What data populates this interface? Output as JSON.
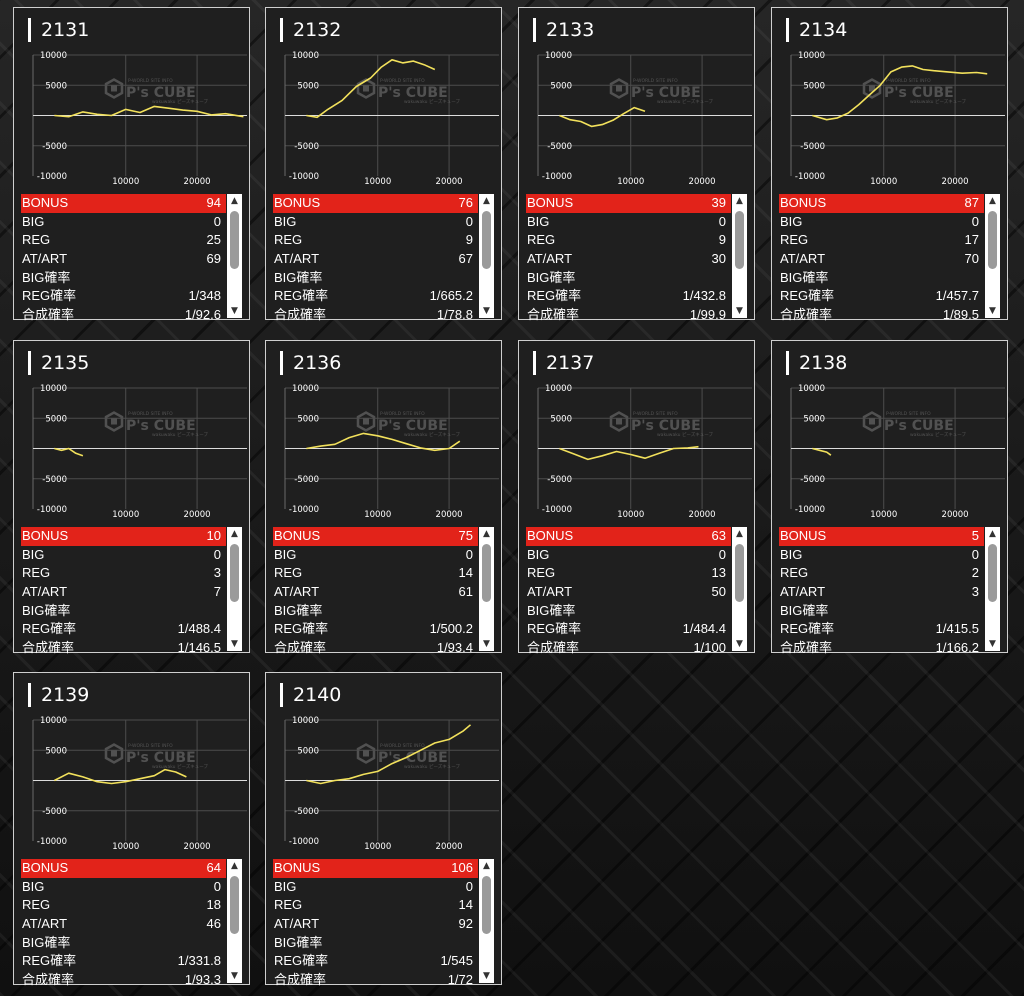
{
  "labels": {
    "bonus": "BONUS",
    "big": "BIG",
    "reg": "REG",
    "at_art": "AT/ART",
    "big_rate": "BIG確率",
    "reg_rate": "REG確率",
    "combined_rate": "合成確率"
  },
  "watermark": {
    "logo": "P's CUBE",
    "tagline_top": "P-WORLD SITE INFO",
    "tagline_bottom": "wakuwaku ピーズキューブ"
  },
  "graph_axes": {
    "y_ticks": [
      "10000",
      "5000",
      "-5000",
      "-10000"
    ],
    "x_ticks": [
      "10000",
      "20000"
    ]
  },
  "scrollbar": {
    "up_arrow": "▲",
    "down_arrow": "▼"
  },
  "machines": [
    {
      "number": "2131",
      "bonus": "94",
      "big": "0",
      "reg": "25",
      "at_art": "69",
      "big_rate": "",
      "reg_rate": "1/348",
      "combined_rate": "1/92.6",
      "chart_data": {
        "type": "line",
        "xlim": [
          -3000,
          27000
        ],
        "ylim": [
          -10000,
          10000
        ],
        "x": [
          0,
          2000,
          4000,
          6000,
          8000,
          10000,
          12000,
          14000,
          16000,
          18000,
          20000,
          22000,
          24000,
          26500
        ],
        "y": [
          0,
          -200,
          600,
          200,
          0,
          1000,
          500,
          1500,
          1200,
          900,
          700,
          100,
          300,
          -200
        ]
      }
    },
    {
      "number": "2132",
      "bonus": "76",
      "big": "0",
      "reg": "9",
      "at_art": "67",
      "big_rate": "",
      "reg_rate": "1/665.2",
      "combined_rate": "1/78.8",
      "chart_data": {
        "type": "line",
        "xlim": [
          -3000,
          27000
        ],
        "ylim": [
          -10000,
          10000
        ],
        "x": [
          0,
          1500,
          3000,
          5000,
          7000,
          9000,
          10500,
          12000,
          13500,
          15000,
          16500,
          18000
        ],
        "y": [
          0,
          -300,
          1000,
          2500,
          4800,
          6200,
          8000,
          9200,
          8700,
          9000,
          8400,
          7600
        ]
      }
    },
    {
      "number": "2133",
      "bonus": "39",
      "big": "0",
      "reg": "9",
      "at_art": "30",
      "big_rate": "",
      "reg_rate": "1/432.8",
      "combined_rate": "1/99.9",
      "chart_data": {
        "type": "line",
        "xlim": [
          -3000,
          27000
        ],
        "ylim": [
          -10000,
          10000
        ],
        "x": [
          0,
          1500,
          3000,
          4500,
          6000,
          7500,
          9000,
          10500,
          12000
        ],
        "y": [
          0,
          -700,
          -1000,
          -1800,
          -1500,
          -800,
          300,
          1300,
          700
        ]
      }
    },
    {
      "number": "2134",
      "bonus": "87",
      "big": "0",
      "reg": "17",
      "at_art": "70",
      "big_rate": "",
      "reg_rate": "1/457.7",
      "combined_rate": "1/89.5",
      "chart_data": {
        "type": "line",
        "xlim": [
          -3000,
          27000
        ],
        "ylim": [
          -10000,
          10000
        ],
        "x": [
          0,
          2000,
          3500,
          5000,
          6500,
          8000,
          9500,
          11000,
          12500,
          14000,
          15500,
          17000,
          19000,
          21000,
          23000,
          24500
        ],
        "y": [
          0,
          -700,
          -400,
          400,
          1800,
          3400,
          5000,
          7200,
          8000,
          8200,
          7600,
          7400,
          7200,
          7000,
          7100,
          6900
        ]
      }
    },
    {
      "number": "2135",
      "bonus": "10",
      "big": "0",
      "reg": "3",
      "at_art": "7",
      "big_rate": "",
      "reg_rate": "1/488.4",
      "combined_rate": "1/146.5",
      "chart_data": {
        "type": "line",
        "xlim": [
          -3000,
          27000
        ],
        "ylim": [
          -10000,
          10000
        ],
        "x": [
          0,
          1000,
          2000,
          3000,
          4000
        ],
        "y": [
          0,
          -300,
          0,
          -800,
          -1200
        ]
      }
    },
    {
      "number": "2136",
      "bonus": "75",
      "big": "0",
      "reg": "14",
      "at_art": "61",
      "big_rate": "",
      "reg_rate": "1/500.2",
      "combined_rate": "1/93.4",
      "chart_data": {
        "type": "line",
        "xlim": [
          -3000,
          27000
        ],
        "ylim": [
          -10000,
          10000
        ],
        "x": [
          0,
          2000,
          4000,
          6000,
          8000,
          10000,
          12000,
          14000,
          16000,
          18000,
          20000,
          21500
        ],
        "y": [
          0,
          400,
          700,
          1800,
          2500,
          2100,
          1500,
          800,
          100,
          -300,
          0,
          1200
        ]
      }
    },
    {
      "number": "2137",
      "bonus": "63",
      "big": "0",
      "reg": "13",
      "at_art": "50",
      "big_rate": "",
      "reg_rate": "1/484.4",
      "combined_rate": "1/100",
      "chart_data": {
        "type": "line",
        "xlim": [
          -3000,
          27000
        ],
        "ylim": [
          -10000,
          10000
        ],
        "x": [
          0,
          2000,
          4000,
          6000,
          8000,
          10000,
          12000,
          14000,
          16000,
          18000,
          19500
        ],
        "y": [
          0,
          -900,
          -1800,
          -1200,
          -500,
          -1000,
          -1600,
          -800,
          0,
          100,
          300
        ]
      }
    },
    {
      "number": "2138",
      "bonus": "5",
      "big": "0",
      "reg": "2",
      "at_art": "3",
      "big_rate": "",
      "reg_rate": "1/415.5",
      "combined_rate": "1/166.2",
      "chart_data": {
        "type": "line",
        "xlim": [
          -3000,
          27000
        ],
        "ylim": [
          -10000,
          10000
        ],
        "x": [
          0,
          1000,
          2000,
          2600
        ],
        "y": [
          0,
          -300,
          -600,
          -1100
        ]
      }
    },
    {
      "number": "2139",
      "bonus": "64",
      "big": "0",
      "reg": "18",
      "at_art": "46",
      "big_rate": "",
      "reg_rate": "1/331.8",
      "combined_rate": "1/93.3",
      "chart_data": {
        "type": "line",
        "xlim": [
          -3000,
          27000
        ],
        "ylim": [
          -10000,
          10000
        ],
        "x": [
          0,
          2000,
          4000,
          6000,
          8000,
          10000,
          12000,
          14000,
          15500,
          17000,
          18500
        ],
        "y": [
          0,
          1200,
          600,
          -200,
          -500,
          -200,
          300,
          800,
          1800,
          1400,
          600
        ]
      }
    },
    {
      "number": "2140",
      "bonus": "106",
      "big": "0",
      "reg": "14",
      "at_art": "92",
      "big_rate": "",
      "reg_rate": "1/545",
      "combined_rate": "1/72",
      "chart_data": {
        "type": "line",
        "xlim": [
          -3000,
          27000
        ],
        "ylim": [
          -10000,
          10000
        ],
        "x": [
          0,
          2000,
          4000,
          6000,
          8000,
          10000,
          12000,
          14000,
          16000,
          18000,
          20000,
          22000,
          23000
        ],
        "y": [
          0,
          -500,
          0,
          300,
          1000,
          1500,
          2800,
          3800,
          5000,
          6200,
          6800,
          8200,
          9200
        ]
      }
    }
  ]
}
